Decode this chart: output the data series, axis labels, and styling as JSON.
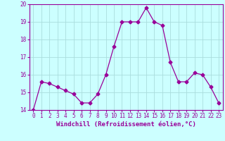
{
  "x": [
    0,
    1,
    2,
    3,
    4,
    5,
    6,
    7,
    8,
    9,
    10,
    11,
    12,
    13,
    14,
    15,
    16,
    17,
    18,
    19,
    20,
    21,
    22,
    23
  ],
  "y": [
    14.0,
    15.6,
    15.5,
    15.3,
    15.1,
    14.9,
    14.4,
    14.4,
    14.9,
    16.0,
    17.6,
    19.0,
    19.0,
    19.0,
    19.8,
    19.0,
    18.8,
    16.7,
    15.6,
    15.6,
    16.1,
    16.0,
    15.3,
    14.4
  ],
  "line_color": "#990099",
  "marker": "D",
  "marker_size": 2.5,
  "bg_color": "#ccffff",
  "grid_color": "#aadddd",
  "xlabel": "Windchill (Refroidissement éolien,°C)",
  "xlabel_color": "#990099",
  "tick_color": "#990099",
  "label_color": "#990099",
  "ylim": [
    14,
    20
  ],
  "xlim_min": -0.5,
  "xlim_max": 23.5,
  "yticks": [
    14,
    15,
    16,
    17,
    18,
    19,
    20
  ],
  "xticks": [
    0,
    1,
    2,
    3,
    4,
    5,
    6,
    7,
    8,
    9,
    10,
    11,
    12,
    13,
    14,
    15,
    16,
    17,
    18,
    19,
    20,
    21,
    22,
    23
  ],
  "tick_fontsize": 5.5,
  "xlabel_fontsize": 6.5,
  "spine_color": "#990099"
}
